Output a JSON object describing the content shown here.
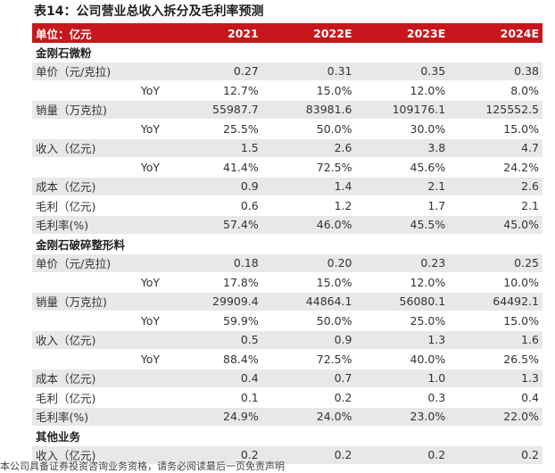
{
  "title": "表14：公司营业总收入拆分及毛利率预测",
  "header": {
    "label": "单位：亿元",
    "years": [
      "2021",
      "2022E",
      "2023E",
      "2024E"
    ]
  },
  "rows": [
    {
      "kind": "section",
      "label": "金刚石微粉",
      "values": []
    },
    {
      "kind": "metric",
      "label": "单价（元/克拉)",
      "values": [
        "0.27",
        "0.31",
        "0.35",
        "0.38"
      ],
      "shade": true
    },
    {
      "kind": "yoy",
      "label": "YoY",
      "values": [
        "12.7%",
        "15.0%",
        "12.0%",
        "8.0%"
      ],
      "shade": false
    },
    {
      "kind": "metric",
      "label": "销量（万克拉)",
      "values": [
        "55987.7",
        "83981.6",
        "109176.1",
        "125552.5"
      ],
      "shade": true
    },
    {
      "kind": "yoy",
      "label": "YoY",
      "values": [
        "25.5%",
        "50.0%",
        "30.0%",
        "15.0%"
      ],
      "shade": false
    },
    {
      "kind": "metric",
      "label": "收入（亿元)",
      "values": [
        "1.5",
        "2.6",
        "3.8",
        "4.7"
      ],
      "shade": true
    },
    {
      "kind": "yoy",
      "label": "YoY",
      "values": [
        "41.4%",
        "72.5%",
        "45.6%",
        "24.2%"
      ],
      "shade": false
    },
    {
      "kind": "metric",
      "label": "成本（亿元)",
      "values": [
        "0.9",
        "1.4",
        "2.1",
        "2.6"
      ],
      "shade": true
    },
    {
      "kind": "metric",
      "label": "毛利（亿元)",
      "values": [
        "0.6",
        "1.2",
        "1.7",
        "2.1"
      ],
      "shade": false
    },
    {
      "kind": "metric",
      "label": "毛利率(%)",
      "values": [
        "57.4%",
        "46.0%",
        "45.5%",
        "45.0%"
      ],
      "shade": true
    },
    {
      "kind": "section",
      "label": "金刚石破碎整形料",
      "values": []
    },
    {
      "kind": "metric",
      "label": "单价（元/克拉)",
      "values": [
        "0.18",
        "0.20",
        "0.23",
        "0.25"
      ],
      "shade": true
    },
    {
      "kind": "yoy",
      "label": "YoY",
      "values": [
        "17.8%",
        "15.0%",
        "12.0%",
        "10.0%"
      ],
      "shade": false
    },
    {
      "kind": "metric",
      "label": "销量（万克拉)",
      "values": [
        "29909.4",
        "44864.1",
        "56080.1",
        "64492.1"
      ],
      "shade": true
    },
    {
      "kind": "yoy",
      "label": "YoY",
      "values": [
        "59.9%",
        "50.0%",
        "25.0%",
        "15.0%"
      ],
      "shade": false
    },
    {
      "kind": "metric",
      "label": "收入（亿元)",
      "values": [
        "0.5",
        "0.9",
        "1.3",
        "1.6"
      ],
      "shade": true
    },
    {
      "kind": "yoy",
      "label": "YoY",
      "values": [
        "88.4%",
        "72.5%",
        "40.0%",
        "26.5%"
      ],
      "shade": false
    },
    {
      "kind": "metric",
      "label": "成本（亿元)",
      "values": [
        "0.4",
        "0.7",
        "1.0",
        "1.3"
      ],
      "shade": true
    },
    {
      "kind": "metric",
      "label": "毛利（亿元)",
      "values": [
        "0.1",
        "0.2",
        "0.3",
        "0.4"
      ],
      "shade": false
    },
    {
      "kind": "metric",
      "label": "毛利率(%)",
      "values": [
        "24.9%",
        "24.0%",
        "23.0%",
        "22.0%"
      ],
      "shade": true
    },
    {
      "kind": "section",
      "label": "其他业务",
      "values": []
    },
    {
      "kind": "metric",
      "label": "收入（亿元)",
      "values": [
        "0.2",
        "0.2",
        "0.2",
        "0.2"
      ],
      "shade": true
    }
  ],
  "footer": "本公司具备证券投资咨询业务资格，请务必阅读最后一页免责声明"
}
